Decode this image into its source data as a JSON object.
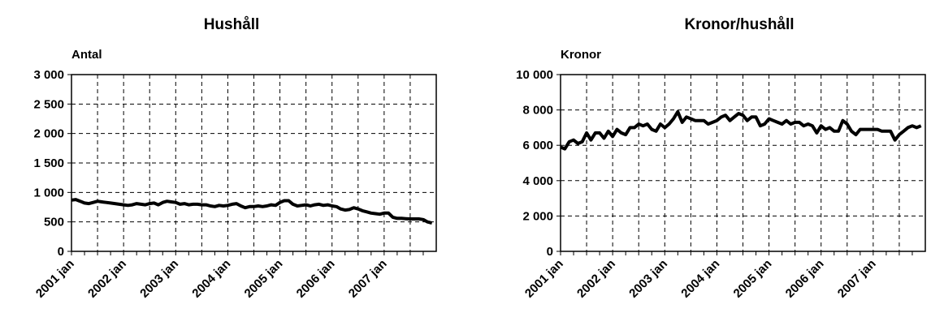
{
  "chart_data": [
    {
      "type": "line",
      "title": "Hushåll",
      "y_label": "Antal",
      "color": "#000000",
      "grid": true,
      "ylim": [
        0,
        3000
      ],
      "yticks": [
        0,
        500,
        {
          "value": 1000,
          "label": "1 000"
        },
        {
          "value": 1500,
          "label": "1 500"
        },
        {
          "value": 2000,
          "label": "2 000"
        },
        {
          "value": 2500,
          "label": "2 500"
        },
        {
          "value": 3000,
          "label": "3 000"
        }
      ],
      "categories": [
        "2001 jan",
        null,
        null,
        null,
        null,
        null,
        null,
        null,
        null,
        null,
        null,
        null,
        "2002 jan",
        null,
        null,
        null,
        null,
        null,
        null,
        null,
        null,
        null,
        null,
        null,
        "2003 jan",
        null,
        null,
        null,
        null,
        null,
        null,
        null,
        null,
        null,
        null,
        null,
        "2004 jan",
        null,
        null,
        null,
        null,
        null,
        null,
        null,
        null,
        null,
        null,
        null,
        "2005 jan",
        null,
        null,
        null,
        null,
        null,
        null,
        null,
        null,
        null,
        null,
        null,
        "2006 jan",
        null,
        null,
        null,
        null,
        null,
        null,
        null,
        null,
        null,
        null,
        null,
        "2007 jan",
        null,
        null,
        null,
        null,
        null,
        null,
        null,
        null,
        null,
        null,
        null
      ],
      "values": [
        870,
        880,
        850,
        820,
        810,
        830,
        850,
        840,
        830,
        820,
        810,
        800,
        790,
        780,
        790,
        810,
        800,
        790,
        810,
        820,
        790,
        830,
        850,
        840,
        830,
        800,
        810,
        790,
        800,
        800,
        790,
        790,
        770,
        760,
        780,
        770,
        780,
        800,
        810,
        770,
        740,
        760,
        760,
        770,
        760,
        770,
        790,
        780,
        830,
        860,
        860,
        800,
        770,
        780,
        790,
        770,
        790,
        800,
        780,
        790,
        770,
        760,
        720,
        700,
        710,
        740,
        720,
        690,
        670,
        650,
        640,
        630,
        650,
        650,
        580,
        560,
        560,
        555,
        550,
        550,
        550,
        540,
        500,
        480
      ]
    },
    {
      "type": "line",
      "title": "Kronor/hushåll",
      "y_label": "Kronor",
      "color": "#000000",
      "grid": true,
      "ylim": [
        0,
        10000
      ],
      "yticks": [
        0,
        {
          "value": 2000,
          "label": "2 000"
        },
        {
          "value": 4000,
          "label": "4 000"
        },
        {
          "value": 6000,
          "label": "6 000"
        },
        {
          "value": 8000,
          "label": "8 000"
        },
        {
          "value": 10000,
          "label": "10 000"
        }
      ],
      "categories": [
        "2001 jan",
        null,
        null,
        null,
        null,
        null,
        null,
        null,
        null,
        null,
        null,
        null,
        "2002 jan",
        null,
        null,
        null,
        null,
        null,
        null,
        null,
        null,
        null,
        null,
        null,
        "2003 jan",
        null,
        null,
        null,
        null,
        null,
        null,
        null,
        null,
        null,
        null,
        null,
        "2004 jan",
        null,
        null,
        null,
        null,
        null,
        null,
        null,
        null,
        null,
        null,
        null,
        "2005 jan",
        null,
        null,
        null,
        null,
        null,
        null,
        null,
        null,
        null,
        null,
        null,
        "2006 jan",
        null,
        null,
        null,
        null,
        null,
        null,
        null,
        null,
        null,
        null,
        null,
        "2007 jan",
        null,
        null,
        null,
        null,
        null,
        null,
        null,
        null,
        null,
        null,
        null
      ],
      "values": [
        5900,
        5800,
        6200,
        6300,
        6100,
        6200,
        6700,
        6300,
        6700,
        6700,
        6400,
        6800,
        6500,
        6900,
        6700,
        6600,
        7000,
        7000,
        7200,
        7100,
        7200,
        6900,
        6800,
        7200,
        7000,
        7200,
        7500,
        7900,
        7300,
        7600,
        7500,
        7400,
        7400,
        7400,
        7200,
        7300,
        7400,
        7600,
        7700,
        7400,
        7600,
        7800,
        7700,
        7400,
        7600,
        7600,
        7100,
        7200,
        7500,
        7400,
        7300,
        7200,
        7400,
        7200,
        7300,
        7300,
        7100,
        7200,
        7100,
        6700,
        7100,
        6900,
        7000,
        6800,
        6800,
        7400,
        7200,
        6800,
        6600,
        6900,
        6900,
        6900,
        6900,
        6900,
        6800,
        6800,
        6800,
        6300,
        6600,
        6800,
        7000,
        7100,
        7000,
        7100
      ]
    }
  ]
}
